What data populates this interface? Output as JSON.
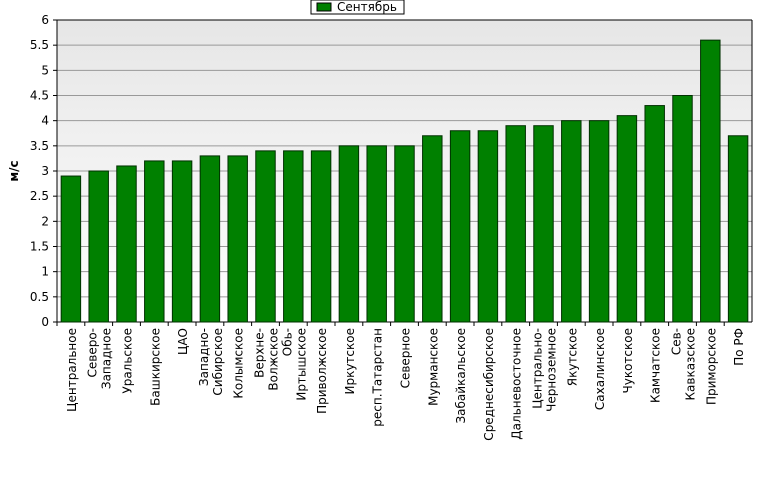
{
  "chart_data": {
    "type": "bar",
    "y_label": "м/с",
    "categories": [
      "Центральное",
      "Северо-Западное",
      "Уральское",
      "Башкирское",
      "ЦАО",
      "Западно-Сибирское",
      "Колымское",
      "Верхне-Волжское",
      "Обь-Иртышское",
      "Приволжское",
      "Иркутское",
      "респ.Татарстан",
      "Северное",
      "Мурманское",
      "Забайкальское",
      "Среднесибирское",
      "Дальневосточное",
      "Центрально-Черноземное",
      "Якутское",
      "Сахалинское",
      "Чукотское",
      "Камчатское",
      "Сев-Кавказское",
      "Приморское",
      "По РФ"
    ],
    "series": [
      {
        "name": "Сентябрь",
        "color": "#008000",
        "values": [
          2.9,
          3.0,
          3.1,
          3.2,
          3.2,
          3.3,
          3.3,
          3.4,
          3.4,
          3.4,
          3.5,
          3.5,
          3.5,
          3.7,
          3.8,
          3.8,
          3.9,
          3.9,
          4.0,
          4.0,
          4.1,
          4.3,
          4.5,
          5.6,
          3.7
        ]
      }
    ],
    "ylim": [
      0,
      6
    ],
    "yticks": [
      0,
      0.5,
      1,
      1.5,
      2,
      2.5,
      3,
      3.5,
      4,
      4.5,
      5,
      5.5,
      6
    ],
    "grid": true,
    "legend": "top"
  }
}
